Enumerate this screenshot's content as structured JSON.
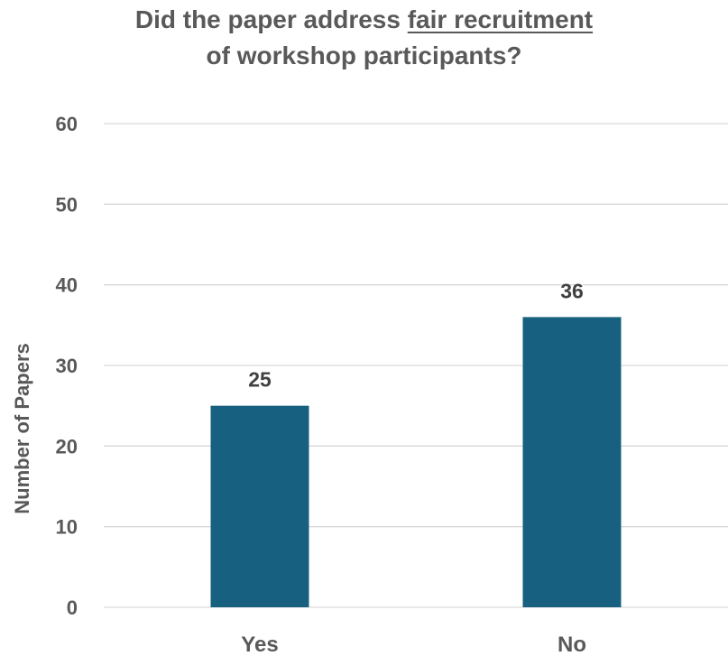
{
  "chart_data": {
    "type": "bar",
    "title": {
      "line1_before": "Did the paper address ",
      "line1_underlined": "fair recruitment",
      "line2": "of workshop participants?"
    },
    "categories": [
      "Yes",
      "No"
    ],
    "values": [
      25,
      36
    ],
    "data_labels": [
      "25",
      "36"
    ],
    "ylabel": "Number of Papers",
    "xlabel": "",
    "ylim": [
      0,
      60
    ],
    "yticks": [
      "0",
      "10",
      "20",
      "30",
      "40",
      "50",
      "60"
    ],
    "grid": true,
    "legend": "none",
    "colors": {
      "bar": "#17607F",
      "grid": "#D9D9D9",
      "text": "#595959",
      "label": "#404040"
    }
  }
}
